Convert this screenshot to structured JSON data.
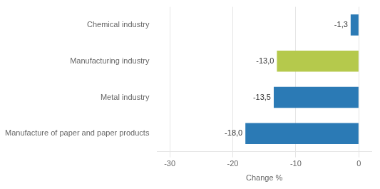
{
  "chart_data": {
    "type": "bar",
    "orientation": "horizontal",
    "categories": [
      "Manufacture of paper and paper products",
      "Metal industry",
      "Manufacturing industry",
      "Chemical industry"
    ],
    "values": [
      -18.0,
      -13.5,
      -13.0,
      -1.3
    ],
    "value_labels": [
      "-18,0",
      "-13,5",
      "-13,0",
      "-1,3"
    ],
    "colors": [
      "#2b7ab5",
      "#2b7ab5",
      "#b5c94c",
      "#2b7ab5"
    ],
    "xlabel": "Change %",
    "xlim": [
      -32,
      2
    ],
    "xticks": [
      -30,
      -20,
      -10,
      0
    ],
    "grid": true,
    "data_labels": true
  }
}
